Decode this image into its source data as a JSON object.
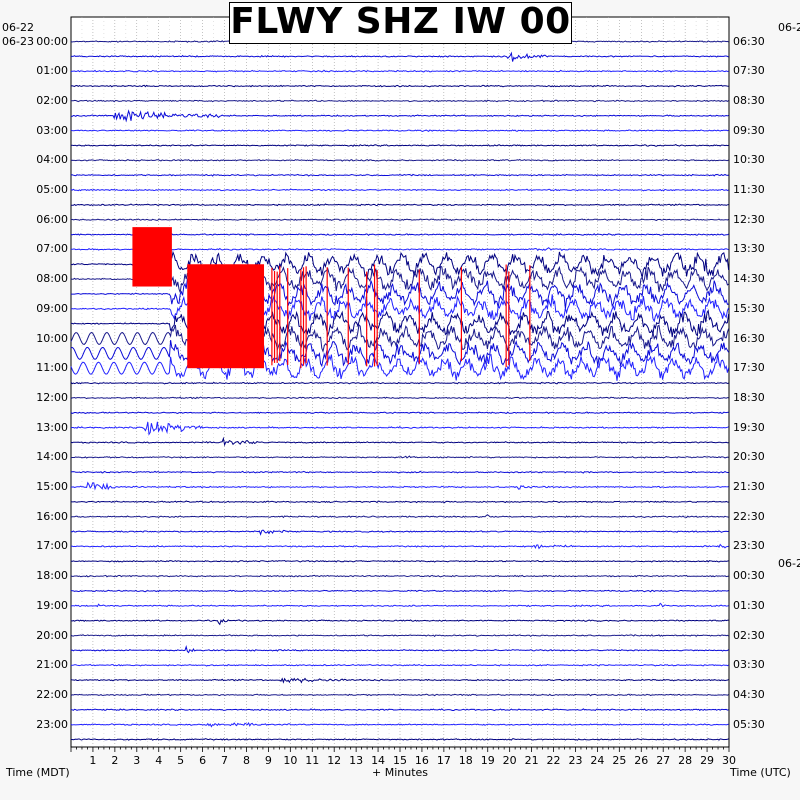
{
  "chart_data": {
    "type": "line",
    "title": "FLWY SHZ IW 00",
    "xlabel": "+ Minutes",
    "left_axis_label": "Time (MDT)",
    "right_axis_label": "Time (UTC)",
    "xlim": [
      0,
      30
    ],
    "x_ticks": [
      "1",
      "2",
      "3",
      "4",
      "5",
      "6",
      "7",
      "8",
      "9",
      "10",
      "11",
      "12",
      "13",
      "14",
      "15",
      "16",
      "17",
      "18",
      "19",
      "20",
      "21",
      "22",
      "23",
      "24",
      "25",
      "26",
      "27",
      "28",
      "29",
      "30"
    ],
    "left_date_top": "06-22",
    "left_date_start": "06-23",
    "right_date_top": "06-2",
    "right_date_mid": "06-2",
    "left_hour_labels": [
      "00:00",
      "01:00",
      "02:00",
      "03:00",
      "04:00",
      "05:00",
      "06:00",
      "07:00",
      "08:00",
      "09:00",
      "10:00",
      "11:00",
      "12:00",
      "13:00",
      "14:00",
      "15:00",
      "16:00",
      "17:00",
      "18:00",
      "19:00",
      "20:00",
      "21:00",
      "22:00",
      "23:00"
    ],
    "right_hour_labels": [
      "06:30",
      "07:30",
      "08:30",
      "09:30",
      "10:30",
      "11:30",
      "12:30",
      "13:30",
      "14:30",
      "15:30",
      "16:30",
      "17:30",
      "18:30",
      "19:30",
      "20:30",
      "21:30",
      "22:30",
      "23:30",
      "00:30",
      "01:30",
      "02:30",
      "03:30",
      "04:30",
      "05:30"
    ],
    "trace_colors": [
      "#1a1a8c",
      "#0b0bd8",
      "#2222ff",
      "#000080"
    ],
    "clip_color": "#ff0000",
    "trace_count": 48,
    "events": [
      {
        "row": 1,
        "start_min": 19.8,
        "end_min": 21.8,
        "amplitude": 0.9
      },
      {
        "row": 5,
        "start_min": 1.8,
        "end_min": 6.8,
        "amplitude": 1.0
      },
      {
        "row": 14,
        "start_min": 21.0,
        "end_min": 22.5,
        "amplitude": 0.35
      },
      {
        "row": 20,
        "start_min": 20.0,
        "end_min": 30.0,
        "amplitude": 0.25
      },
      {
        "row": 26,
        "start_min": 3.3,
        "end_min": 6.0,
        "amplitude": 1.8
      },
      {
        "row": 27,
        "start_min": 6.8,
        "end_min": 8.5,
        "amplitude": 0.9
      },
      {
        "row": 28,
        "start_min": 15.2,
        "end_min": 15.6,
        "amplitude": 0.7
      },
      {
        "row": 30,
        "start_min": 0.7,
        "end_min": 2.0,
        "amplitude": 1.4
      },
      {
        "row": 30,
        "start_min": 20.3,
        "end_min": 21.0,
        "amplitude": 0.4
      },
      {
        "row": 32,
        "start_min": 18.8,
        "end_min": 19.4,
        "amplitude": 0.6
      },
      {
        "row": 33,
        "start_min": 8.6,
        "end_min": 9.8,
        "amplitude": 0.7
      },
      {
        "row": 34,
        "start_min": 21.0,
        "end_min": 23.0,
        "amplitude": 0.35
      },
      {
        "row": 34,
        "start_min": 29.5,
        "end_min": 30.0,
        "amplitude": 0.35
      },
      {
        "row": 38,
        "start_min": 1.1,
        "end_min": 1.6,
        "amplitude": 0.5
      },
      {
        "row": 38,
        "start_min": 26.7,
        "end_min": 27.3,
        "amplitude": 0.5
      },
      {
        "row": 39,
        "start_min": 6.7,
        "end_min": 7.4,
        "amplitude": 0.5
      },
      {
        "row": 40,
        "start_min": 26.8,
        "end_min": 27.2,
        "amplitude": 0.4
      },
      {
        "row": 41,
        "start_min": 5.2,
        "end_min": 5.6,
        "amplitude": 1.6
      },
      {
        "row": 42,
        "start_min": 5.2,
        "end_min": 5.5,
        "amplitude": 0.8
      },
      {
        "row": 43,
        "start_min": 9.5,
        "end_min": 12.5,
        "amplitude": 0.5
      },
      {
        "row": 46,
        "start_min": 6.0,
        "end_min": 10.0,
        "amplitude": 0.3
      }
    ],
    "clipped_blocks": [
      {
        "row_start": 12.5,
        "row_end": 16.5,
        "start_min": 2.8,
        "end_min": 4.6
      },
      {
        "row_start": 15.0,
        "row_end": 22.0,
        "start_min": 5.3,
        "end_min": 8.8
      }
    ],
    "clipped_spikes": {
      "row_start": 15.0,
      "row_end": 22.0,
      "start_min": 8.8,
      "end_min": 21.8
    },
    "saturated_rows": {
      "row_start": 14.5,
      "row_end": 22.0,
      "start_min": 4.5,
      "end_min": 30.0
    },
    "pre_event_wobble": {
      "row_start": 20.0,
      "row_end": 22.0,
      "start_min": 0.0,
      "end_min": 4.5
    }
  }
}
